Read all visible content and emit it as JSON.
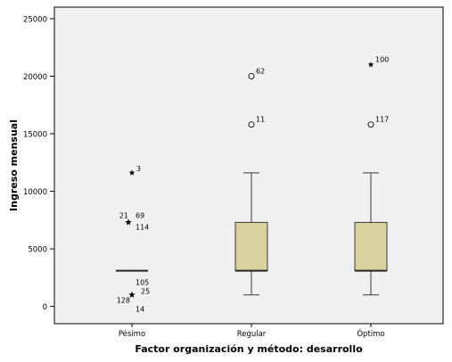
{
  "chart_data": {
    "type": "box",
    "title": "",
    "xlabel": "Factor organización y método: desarrollo",
    "ylabel": "Ingreso mensual",
    "ylim": [
      -1500,
      26000
    ],
    "yticks": [
      0,
      5000,
      10000,
      15000,
      20000,
      25000
    ],
    "ytick_labels": [
      "0",
      "5000",
      "10000",
      "15000",
      "20000",
      "25000"
    ],
    "categories": [
      "Pésimo",
      "Regular",
      "Óptimo"
    ],
    "grid": false,
    "colors": {
      "plot_background": "#f0f0f0",
      "box_fill": "#d9d19e",
      "box_stroke": "#3a3a3a",
      "axis": "#000000"
    },
    "boxes": [
      {
        "category": "Pésimo",
        "min": 3100,
        "q1": 3100,
        "median": 3100,
        "q3": 3100,
        "max": 3100,
        "outliers": [
          {
            "value": 11600,
            "marker": "star",
            "label": "3"
          },
          {
            "value": 7300,
            "marker": "star",
            "label": "21"
          },
          {
            "value": 7300,
            "marker": "star",
            "label": "69"
          },
          {
            "value": 7300,
            "marker": "star",
            "label": "114"
          },
          {
            "value": 1000,
            "marker": "star",
            "label": "105"
          },
          {
            "value": 1000,
            "marker": "star",
            "label": "25"
          },
          {
            "value": 1000,
            "marker": "star",
            "label": "128"
          },
          {
            "value": 1000,
            "marker": "star",
            "label": "14"
          }
        ]
      },
      {
        "category": "Regular",
        "min": 1000,
        "q1": 3100,
        "median": 3100,
        "q3": 7300,
        "max": 11600,
        "outliers": [
          {
            "value": 20000,
            "marker": "circle",
            "label": "62"
          },
          {
            "value": 15800,
            "marker": "circle",
            "label": "11"
          }
        ]
      },
      {
        "category": "Óptimo",
        "min": 1000,
        "q1": 3100,
        "median": 3100,
        "q3": 7300,
        "max": 11600,
        "outliers": [
          {
            "value": 21000,
            "marker": "star",
            "label": "100"
          },
          {
            "value": 15800,
            "marker": "circle",
            "label": "117"
          }
        ]
      }
    ]
  }
}
